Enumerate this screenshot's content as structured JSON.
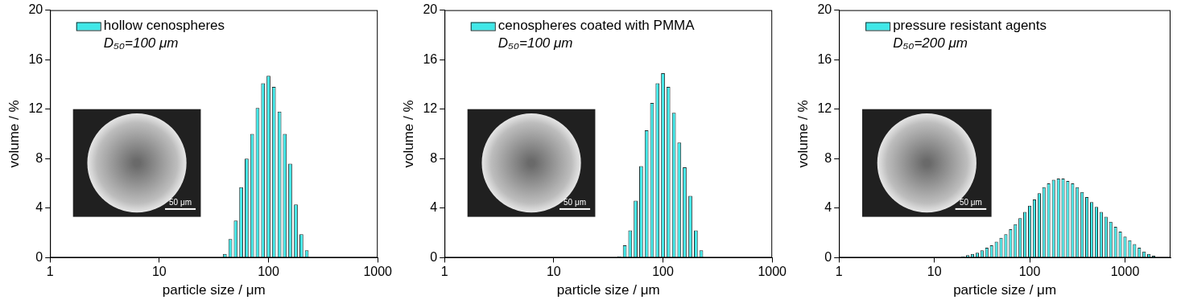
{
  "chart_data": [
    {
      "type": "bar",
      "log": "x",
      "grid": false,
      "legend": "upper left",
      "x_label": "particle size / μm",
      "y_label": "volume / %",
      "annotation": "D₅₀=100 μm",
      "inset_scale_bar": "50 μm",
      "xlim": [
        1,
        1000
      ],
      "xticks": [
        1,
        10,
        100,
        1000
      ],
      "ylim": [
        0,
        20
      ],
      "yticks": [
        0,
        4,
        8,
        12,
        16,
        20
      ],
      "x": [
        39.8,
        44.7,
        50.1,
        56.2,
        63.1,
        70.8,
        79.4,
        89.1,
        100,
        112,
        126,
        141,
        158,
        178,
        200,
        224
      ],
      "series": [
        {
          "name": "hollow cenospheres",
          "color": "#40e8e8",
          "values": [
            0.3,
            1.5,
            3,
            5.7,
            8,
            10,
            12.1,
            14.1,
            14.7,
            13.8,
            11.8,
            10,
            7.6,
            4.3,
            1.9,
            0.6
          ]
        }
      ]
    },
    {
      "type": "bar",
      "log": "x",
      "grid": false,
      "legend": "upper left",
      "x_label": "particle size / μm",
      "y_label": "volume / %",
      "annotation": "D₅₀=100 μm",
      "inset_scale_bar": "50 μm",
      "xlim": [
        1,
        1000
      ],
      "xticks": [
        1,
        10,
        100,
        1000
      ],
      "ylim": [
        0,
        20
      ],
      "yticks": [
        0,
        4,
        8,
        12,
        16,
        20
      ],
      "x": [
        39.8,
        44.7,
        50.1,
        56.2,
        63.1,
        70.8,
        79.4,
        89.1,
        100,
        112,
        126,
        141,
        158,
        178,
        200,
        224
      ],
      "series": [
        {
          "name": "cenospheres coated with PMMA",
          "color": "#40e8e8",
          "values": [
            0.1,
            1,
            2.2,
            4.6,
            7.4,
            10.3,
            12.5,
            14.1,
            14.9,
            13.8,
            11.7,
            9.3,
            7.3,
            5,
            2.2,
            0.6
          ]
        }
      ]
    },
    {
      "type": "bar",
      "log": "x",
      "grid": false,
      "legend": "upper left",
      "x_label": "particle size / μm",
      "y_label": "volume / %",
      "annotation": "D₅₀=200 μm",
      "inset_scale_bar": "50 μm",
      "xlim": [
        1,
        3000
      ],
      "xticks": [
        1,
        10,
        100,
        1000
      ],
      "ylim": [
        0,
        20
      ],
      "yticks": [
        0,
        4,
        8,
        12,
        16,
        20
      ],
      "x": [
        20.0,
        22.4,
        25.1,
        28.2,
        31.6,
        35.5,
        39.8,
        44.7,
        50.1,
        56.2,
        63.1,
        70.8,
        79.4,
        89.1,
        100,
        112,
        126,
        141,
        158,
        178,
        200,
        224,
        251,
        282,
        316,
        355,
        398,
        447,
        501,
        562,
        631,
        708,
        794,
        891,
        1000,
        1122,
        1259,
        1413,
        1585,
        1778,
        1995
      ],
      "series": [
        {
          "name": "pressure resistant agents",
          "color": "#40e8e8",
          "values": [
            0.1,
            0.2,
            0.3,
            0.4,
            0.6,
            0.8,
            1.0,
            1.3,
            1.6,
            1.9,
            2.3,
            2.7,
            3.2,
            3.7,
            4.2,
            4.7,
            5.2,
            5.7,
            6.0,
            6.3,
            6.4,
            6.4,
            6.2,
            6.0,
            5.7,
            5.3,
            4.9,
            4.5,
            4.1,
            3.7,
            3.3,
            2.9,
            2.5,
            2.1,
            1.7,
            1.4,
            1.1,
            0.8,
            0.5,
            0.3,
            0.15
          ]
        }
      ]
    }
  ]
}
